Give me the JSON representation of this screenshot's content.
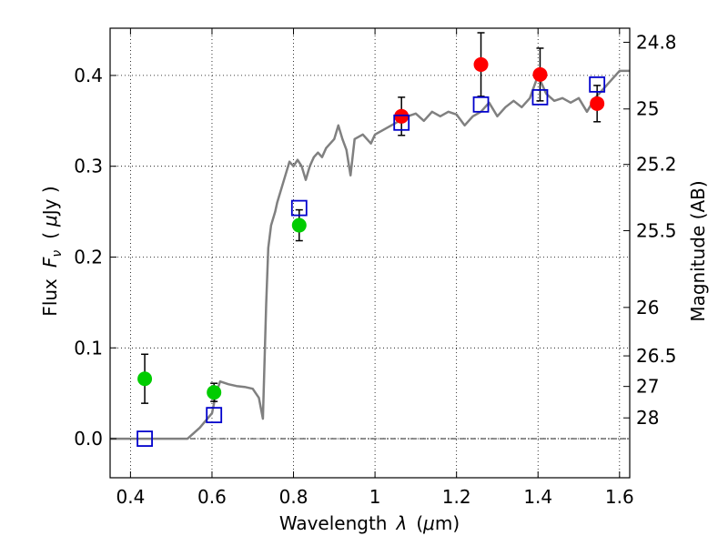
{
  "chart_data": {
    "type": "scatter",
    "xlabel_text": "Wavelength",
    "xlabel_math": "λ",
    "xlabel_unit_open": "(",
    "xlabel_unit_mu": "μ",
    "xlabel_unit_rest": "m)",
    "ylabel_text": "Flux",
    "ylabel_math": "F",
    "ylabel_sub": "ν",
    "ylabel_unit_open": "(",
    "ylabel_unit_mu": "μ",
    "ylabel_unit_rest": "Jy )",
    "y2label": "Magnitude (AB)",
    "xlim": [
      0.35,
      1.625
    ],
    "ylim": [
      -0.043,
      0.452
    ],
    "grid": true,
    "x_ticks": [
      {
        "value": 0.4,
        "label": "0.4"
      },
      {
        "value": 0.6,
        "label": "0.6"
      },
      {
        "value": 0.8,
        "label": "0.8"
      },
      {
        "value": 1.0,
        "label": "1"
      },
      {
        "value": 1.2,
        "label": "1.2"
      },
      {
        "value": 1.4,
        "label": "1.4"
      },
      {
        "value": 1.6,
        "label": "1.6"
      }
    ],
    "y_ticks": [
      {
        "value": 0.0,
        "label": "0.0"
      },
      {
        "value": 0.1,
        "label": "0.1"
      },
      {
        "value": 0.2,
        "label": "0.2"
      },
      {
        "value": 0.3,
        "label": "0.3"
      },
      {
        "value": 0.4,
        "label": "0.4"
      }
    ],
    "mag_ticks": [
      {
        "mag": 24.8,
        "label": "24.8"
      },
      {
        "mag": 25.0,
        "label": "25"
      },
      {
        "mag": 25.2,
        "label": "25.2"
      },
      {
        "mag": 25.5,
        "label": "25.5"
      },
      {
        "mag": 26.0,
        "label": "26"
      },
      {
        "mag": 26.5,
        "label": "26.5"
      },
      {
        "mag": 27.0,
        "label": "27"
      },
      {
        "mag": 28.0,
        "label": "28"
      }
    ],
    "model_spectrum": {
      "color": "#808080",
      "points": [
        [
          0.35,
          0.0
        ],
        [
          0.54,
          0.0
        ],
        [
          0.57,
          0.012
        ],
        [
          0.6,
          0.028
        ],
        [
          0.61,
          0.05
        ],
        [
          0.62,
          0.063
        ],
        [
          0.64,
          0.06
        ],
        [
          0.66,
          0.058
        ],
        [
          0.68,
          0.057
        ],
        [
          0.7,
          0.055
        ],
        [
          0.715,
          0.045
        ],
        [
          0.725,
          0.022
        ],
        [
          0.733,
          0.148
        ],
        [
          0.738,
          0.21
        ],
        [
          0.745,
          0.235
        ],
        [
          0.755,
          0.25
        ],
        [
          0.76,
          0.26
        ],
        [
          0.77,
          0.275
        ],
        [
          0.78,
          0.29
        ],
        [
          0.79,
          0.305
        ],
        [
          0.8,
          0.3
        ],
        [
          0.81,
          0.307
        ],
        [
          0.82,
          0.3
        ],
        [
          0.83,
          0.285
        ],
        [
          0.84,
          0.3
        ],
        [
          0.85,
          0.31
        ],
        [
          0.86,
          0.315
        ],
        [
          0.87,
          0.31
        ],
        [
          0.88,
          0.32
        ],
        [
          0.9,
          0.33
        ],
        [
          0.91,
          0.345
        ],
        [
          0.92,
          0.33
        ],
        [
          0.93,
          0.318
        ],
        [
          0.94,
          0.29
        ],
        [
          0.95,
          0.33
        ],
        [
          0.97,
          0.335
        ],
        [
          0.99,
          0.325
        ],
        [
          1.0,
          0.335
        ],
        [
          1.02,
          0.34
        ],
        [
          1.04,
          0.345
        ],
        [
          1.06,
          0.35
        ],
        [
          1.08,
          0.355
        ],
        [
          1.1,
          0.358
        ],
        [
          1.12,
          0.35
        ],
        [
          1.14,
          0.36
        ],
        [
          1.16,
          0.355
        ],
        [
          1.18,
          0.36
        ],
        [
          1.2,
          0.357
        ],
        [
          1.22,
          0.345
        ],
        [
          1.24,
          0.355
        ],
        [
          1.26,
          0.36
        ],
        [
          1.28,
          0.37
        ],
        [
          1.3,
          0.355
        ],
        [
          1.32,
          0.365
        ],
        [
          1.34,
          0.372
        ],
        [
          1.36,
          0.365
        ],
        [
          1.38,
          0.375
        ],
        [
          1.4,
          0.4
        ],
        [
          1.42,
          0.38
        ],
        [
          1.44,
          0.372
        ],
        [
          1.46,
          0.375
        ],
        [
          1.48,
          0.37
        ],
        [
          1.5,
          0.375
        ],
        [
          1.52,
          0.36
        ],
        [
          1.54,
          0.375
        ],
        [
          1.56,
          0.385
        ],
        [
          1.58,
          0.395
        ],
        [
          1.6,
          0.405
        ],
        [
          1.625,
          0.405
        ]
      ]
    },
    "series": [
      {
        "marker": "filled-circle",
        "color": "#00cc00",
        "points": [
          {
            "x": 0.435,
            "y": 0.066,
            "err": 0.027
          },
          {
            "x": 0.605,
            "y": 0.051,
            "err": 0.01
          },
          {
            "x": 0.814,
            "y": 0.235,
            "err": 0.017
          }
        ]
      },
      {
        "marker": "filled-circle",
        "color": "#ff0000",
        "points": [
          {
            "x": 1.065,
            "y": 0.355,
            "err": 0.021
          },
          {
            "x": 1.26,
            "y": 0.412,
            "err": 0.035
          },
          {
            "x": 1.405,
            "y": 0.401,
            "err": 0.029
          },
          {
            "x": 1.545,
            "y": 0.369,
            "err": 0.02
          }
        ]
      },
      {
        "marker": "open-square",
        "color": "#0000cc",
        "points": [
          {
            "x": 0.435,
            "y": 0.0
          },
          {
            "x": 0.605,
            "y": 0.026
          },
          {
            "x": 0.814,
            "y": 0.254
          },
          {
            "x": 1.065,
            "y": 0.348
          },
          {
            "x": 1.26,
            "y": 0.368
          },
          {
            "x": 1.405,
            "y": 0.376
          },
          {
            "x": 1.545,
            "y": 0.39
          }
        ]
      }
    ],
    "errorbar_color": "#000000",
    "zero_line_color": "#000000"
  }
}
